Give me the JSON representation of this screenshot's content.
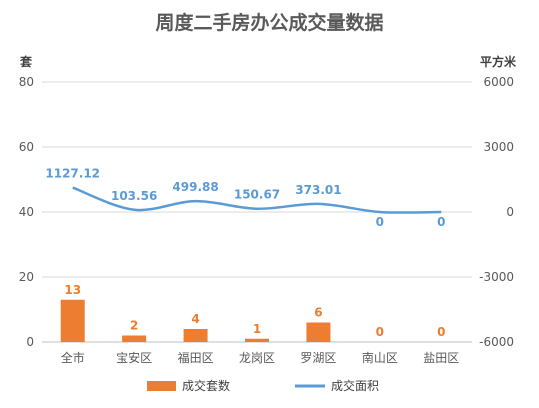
{
  "chart_data": {
    "type": "bar+line",
    "title": "周度二手房办公成交量数据",
    "categories": [
      "全市",
      "宝安区",
      "福田区",
      "龙岗区",
      "罗湖区",
      "南山区",
      "盐田区"
    ],
    "y_left": {
      "label": "套",
      "ticks": [
        "0",
        "20",
        "40",
        "60",
        "80"
      ],
      "range": [
        0,
        80
      ]
    },
    "y_right": {
      "label": "平方米",
      "ticks": [
        "-6000",
        "-3000",
        "0",
        "3000",
        "6000"
      ],
      "range": [
        -6000,
        6000
      ]
    },
    "series": [
      {
        "name": "成交套数",
        "kind": "bar",
        "axis": "left",
        "color": "#ed7d31",
        "values": [
          13,
          2,
          4,
          1,
          6,
          0,
          0
        ],
        "labels": [
          "13",
          "2",
          "4",
          "1",
          "6",
          "0",
          "0"
        ]
      },
      {
        "name": "成交面积",
        "kind": "line",
        "axis": "right",
        "color": "#5b9bd5",
        "values": [
          1127.12,
          103.56,
          499.88,
          150.67,
          373.01,
          0,
          0
        ],
        "labels": [
          "1127.12",
          "103.56",
          "499.88",
          "150.67",
          "373.01",
          "0",
          "0"
        ]
      }
    ],
    "grid": true,
    "legend_position": "bottom"
  }
}
